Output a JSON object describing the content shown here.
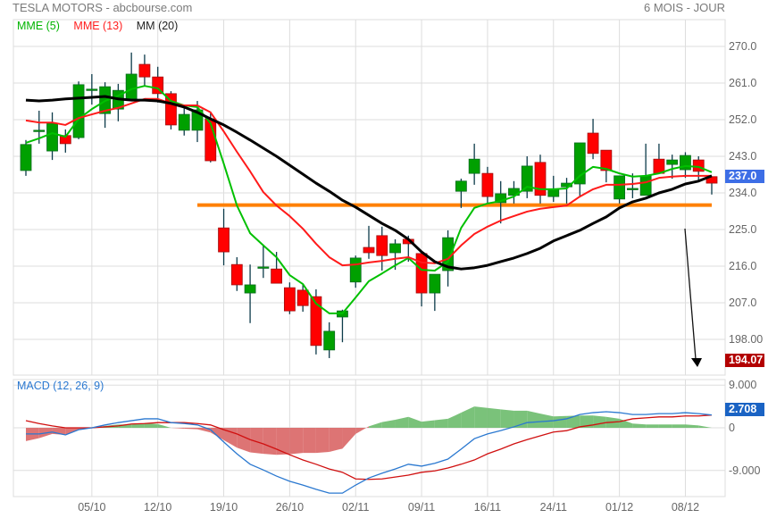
{
  "header": {
    "title": "TESLA MOTORS - abcbourse.com",
    "period": "6 MOIS - JOUR"
  },
  "legend": [
    {
      "label": "MME (5)",
      "color": "#00b400"
    },
    {
      "label": "MME (13)",
      "color": "#ff2020"
    },
    {
      "label": "MM (20)",
      "color": "#222222"
    }
  ],
  "price_axis": {
    "ticks": [
      "270.0",
      "261.0",
      "252.0",
      "243.0",
      "234.0",
      "225.0",
      "216.0",
      "207.0",
      "198.00"
    ],
    "tick_values": [
      270,
      261,
      252,
      243,
      234,
      225,
      216,
      207,
      198
    ]
  },
  "badges": {
    "last_price": {
      "label": "237.0",
      "value": 237.0,
      "color": "#3d6ee6"
    },
    "target": {
      "label": "194.07",
      "value": 194.07,
      "color": "#b30000"
    },
    "macd": {
      "label": "2.708",
      "value": 2.708,
      "color": "#1a63c4"
    }
  },
  "x_axis": {
    "labels": [
      "05/10",
      "12/10",
      "19/10",
      "26/10",
      "02/11",
      "09/11",
      "16/11",
      "24/11",
      "01/12",
      "08/12"
    ],
    "label_candle_index": [
      5,
      10,
      15,
      20,
      25,
      30,
      35,
      40,
      45,
      50
    ]
  },
  "macd_panel": {
    "title": "MACD (12, 26, 9)",
    "ticks": [
      "9.000",
      "0",
      "-9.000"
    ],
    "tick_values": [
      9,
      0,
      -9
    ]
  },
  "support_line": {
    "price": 231.0,
    "from_index": 13.0,
    "to_index": 52,
    "color": "#ff8000"
  },
  "colors": {
    "up": "#00a000",
    "down": "#ff0000",
    "wick": "#0d3b4a",
    "grid": "#dddddd",
    "macd": "#2a78d0",
    "signal": "#d01010",
    "hist_pos": "#6cbb6c",
    "hist_neg": "#d96565"
  },
  "chart_data": {
    "type": "candlestick",
    "ylim": [
      190,
      275
    ],
    "candles": [
      [
        239.5,
        247.0,
        238.2,
        245.9
      ],
      [
        249.4,
        254.2,
        246.1,
        249.4
      ],
      [
        244.3,
        253.8,
        242.1,
        251.1
      ],
      [
        248.1,
        249.6,
        243.9,
        246.1
      ],
      [
        247.6,
        261.4,
        247.2,
        260.6
      ],
      [
        259.5,
        263.2,
        255.7,
        259.5
      ],
      [
        253.5,
        261.2,
        250.0,
        260.1
      ],
      [
        254.6,
        260.8,
        251.6,
        259.2
      ],
      [
        257.1,
        268.5,
        257.1,
        263.2
      ],
      [
        265.6,
        268.0,
        260.3,
        262.5
      ],
      [
        262.5,
        265.0,
        256.2,
        258.4
      ],
      [
        258.4,
        259.0,
        249.6,
        250.7
      ],
      [
        249.4,
        254.9,
        248.1,
        253.3
      ],
      [
        249.4,
        256.6,
        246.5,
        254.4
      ],
      [
        252.2,
        254.0,
        241.5,
        241.9
      ],
      [
        225.4,
        230.1,
        216.2,
        219.5
      ],
      [
        216.4,
        218.2,
        209.9,
        211.4
      ],
      [
        209.4,
        216.4,
        202.0,
        211.4
      ],
      [
        215.8,
        221.3,
        213.1,
        215.8
      ],
      [
        215.3,
        219.5,
        211.8,
        211.8
      ],
      [
        210.7,
        212.0,
        204.2,
        205.0
      ],
      [
        210.1,
        211.5,
        204.8,
        206.3
      ],
      [
        208.5,
        210.3,
        194.3,
        196.5
      ],
      [
        195.4,
        202.2,
        193.4,
        200.0
      ],
      [
        203.5,
        205.3,
        197.3,
        205.0
      ],
      [
        212.1,
        218.6,
        210.7,
        218.0
      ],
      [
        220.6,
        225.9,
        217.8,
        219.3
      ],
      [
        223.5,
        225.7,
        214.9,
        218.6
      ],
      [
        219.3,
        222.6,
        215.1,
        221.5
      ],
      [
        222.6,
        223.5,
        217.1,
        221.5
      ],
      [
        219.1,
        219.1,
        206.1,
        209.4
      ],
      [
        209.4,
        214.0,
        205.0,
        214.0
      ],
      [
        214.9,
        224.8,
        211.0,
        223.0
      ],
      [
        234.4,
        237.5,
        230.3,
        236.9
      ],
      [
        238.8,
        246.1,
        236.0,
        242.3
      ],
      [
        238.8,
        240.4,
        231.4,
        233.1
      ],
      [
        231.6,
        236.9,
        226.5,
        233.8
      ],
      [
        233.4,
        236.9,
        231.4,
        235.1
      ],
      [
        234.4,
        243.0,
        232.7,
        240.6
      ],
      [
        241.5,
        243.4,
        231.4,
        233.4
      ],
      [
        233.1,
        238.2,
        231.8,
        234.9
      ],
      [
        235.5,
        237.7,
        231.4,
        236.4
      ],
      [
        236.2,
        246.3,
        233.1,
        246.3
      ],
      [
        248.7,
        252.2,
        242.3,
        243.7
      ],
      [
        244.5,
        244.5,
        236.6,
        239.5
      ],
      [
        232.5,
        238.2,
        231.4,
        238.2
      ],
      [
        235.1,
        238.8,
        232.7,
        235.1
      ],
      [
        233.4,
        246.1,
        233.4,
        238.2
      ],
      [
        242.3,
        246.1,
        238.8,
        238.8
      ],
      [
        241.0,
        243.4,
        237.5,
        242.1
      ],
      [
        239.7,
        244.0,
        237.7,
        243.2
      ],
      [
        242.1,
        243.0,
        237.1,
        239.3
      ],
      [
        238.0,
        238.0,
        233.6,
        236.4
      ]
    ],
    "series": [
      {
        "name": "MME (5)",
        "values": [
          246.3,
          247.4,
          248.7,
          247.8,
          252.2,
          254.6,
          256.6,
          257.9,
          259.5,
          260.3,
          259.7,
          256.6,
          255.5,
          255.1,
          251.1,
          241.2,
          230.9,
          224.1,
          221.1,
          218.2,
          213.8,
          211.6,
          206.8,
          204.4,
          204.4,
          208.3,
          212.3,
          214.2,
          216.2,
          218.0,
          215.1,
          214.9,
          217.1,
          225.4,
          230.3,
          231.4,
          232.0,
          233.1,
          235.5,
          234.9,
          234.9,
          235.1,
          238.2,
          240.4,
          239.9,
          238.8,
          238.0,
          238.2,
          238.8,
          239.9,
          240.6,
          240.4,
          239.1
        ]
      },
      {
        "name": "MME (13)",
        "values": [
          251.8,
          251.3,
          251.3,
          250.7,
          252.4,
          253.3,
          254.2,
          254.9,
          256.0,
          257.1,
          257.1,
          256.0,
          255.5,
          255.5,
          253.8,
          249.1,
          244.1,
          239.3,
          234.2,
          230.9,
          228.3,
          225.2,
          221.5,
          218.2,
          216.2,
          216.4,
          216.9,
          217.3,
          217.8,
          218.2,
          216.9,
          216.7,
          217.8,
          221.1,
          223.9,
          225.7,
          227.2,
          228.3,
          229.4,
          230.1,
          230.5,
          230.9,
          233.1,
          234.9,
          236.0,
          236.0,
          236.2,
          236.6,
          237.7,
          238.0,
          238.2,
          238.2,
          238.2
        ]
      },
      {
        "name": "MM (20)",
        "values": [
          256.8,
          256.6,
          256.8,
          257.1,
          257.3,
          257.5,
          257.7,
          257.1,
          256.8,
          256.8,
          256.6,
          256.0,
          255.1,
          253.8,
          252.2,
          250.7,
          248.9,
          247.0,
          245.0,
          243.0,
          240.8,
          238.6,
          236.4,
          234.4,
          232.2,
          230.5,
          228.5,
          226.5,
          224.8,
          222.6,
          219.5,
          217.1,
          215.8,
          215.3,
          215.6,
          216.2,
          217.1,
          218.0,
          219.1,
          220.4,
          222.2,
          223.5,
          224.8,
          226.5,
          228.1,
          230.3,
          231.8,
          232.7,
          234.0,
          234.9,
          236.2,
          236.9,
          238.2
        ]
      }
    ],
    "macd": {
      "ylim": [
        -14,
        12
      ],
      "macd": [
        -1.3,
        -1.3,
        -0.9,
        -1.5,
        -0.4,
        0,
        0.6,
        1.1,
        1.5,
        1.9,
        1.9,
        1.1,
        0.9,
        0.6,
        -0.4,
        -3.0,
        -5.5,
        -7.7,
        -8.9,
        -10.2,
        -11.3,
        -12.1,
        -13.0,
        -13.8,
        -13.8,
        -12.1,
        -10.6,
        -9.6,
        -8.7,
        -7.7,
        -8.1,
        -7.5,
        -6.6,
        -4.5,
        -2.3,
        -1.3,
        -0.6,
        0.2,
        1.1,
        1.3,
        1.5,
        1.9,
        2.8,
        3.2,
        3.4,
        3.2,
        2.8,
        2.8,
        3.0,
        3.0,
        3.2,
        3.0,
        2.708
      ],
      "signal": [
        1.5,
        0.9,
        0.4,
        0,
        0,
        0,
        0.2,
        0.4,
        0.8,
        0.9,
        1.1,
        1.1,
        1.1,
        0.9,
        0.6,
        -0.4,
        -1.3,
        -2.5,
        -3.4,
        -4.5,
        -5.7,
        -6.8,
        -7.7,
        -8.7,
        -9.4,
        -10.8,
        -10.9,
        -10.8,
        -10.4,
        -10.0,
        -9.4,
        -9.1,
        -8.5,
        -7.7,
        -6.8,
        -5.5,
        -4.5,
        -3.4,
        -2.5,
        -1.7,
        -0.9,
        -0.6,
        0.2,
        0.6,
        1.1,
        1.3,
        1.9,
        2.1,
        2.3,
        2.3,
        2.5,
        2.5,
        2.7
      ]
    }
  }
}
